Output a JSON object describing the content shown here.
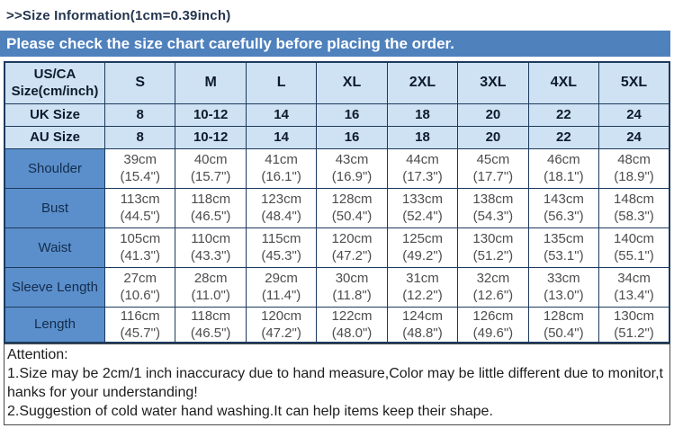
{
  "header": {
    "title": ">>Size Information(1cm=0.39inch)",
    "banner": "Please check the size chart carefully before placing the order."
  },
  "table": {
    "corner_header": [
      "US/CA",
      "Size(cm/inch)"
    ],
    "size_columns": [
      "S",
      "M",
      "L",
      "XL",
      "2XL",
      "3XL",
      "4XL",
      "5XL"
    ],
    "region_rows": [
      {
        "label": "UK Size",
        "values": [
          "8",
          "10-12",
          "14",
          "16",
          "18",
          "20",
          "22",
          "24"
        ]
      },
      {
        "label": "AU Size",
        "values": [
          "8",
          "10-12",
          "14",
          "16",
          "18",
          "20",
          "22",
          "24"
        ]
      }
    ],
    "measurement_rows": [
      {
        "label": "Shoulder",
        "cm": [
          "39cm",
          "40cm",
          "41cm",
          "43cm",
          "44cm",
          "45cm",
          "46cm",
          "48cm"
        ],
        "inch": [
          "(15.4\")",
          "(15.7\")",
          "(16.1\")",
          "(16.9\")",
          "(17.3\")",
          "(17.7\")",
          "(18.1\")",
          "(18.9\")"
        ]
      },
      {
        "label": "Bust",
        "cm": [
          "113cm",
          "118cm",
          "123cm",
          "128cm",
          "133cm",
          "138cm",
          "143cm",
          "148cm"
        ],
        "inch": [
          "(44.5\")",
          "(46.5\")",
          "(48.4\")",
          "(50.4\")",
          "(52.4\")",
          "(54.3\")",
          "(56.3\")",
          "(58.3\")"
        ]
      },
      {
        "label": "Waist",
        "cm": [
          "105cm",
          "110cm",
          "115cm",
          "120cm",
          "125cm",
          "130cm",
          "135cm",
          "140cm"
        ],
        "inch": [
          "(41.3\")",
          "(43.3\")",
          "(45.3\")",
          "(47.2\")",
          "(49.2\")",
          "(51.2\")",
          "(53.1\")",
          "(55.1\")"
        ]
      },
      {
        "label": "Sleeve Length",
        "cm": [
          "27cm",
          "28cm",
          "29cm",
          "30cm",
          "31cm",
          "32cm",
          "33cm",
          "34cm"
        ],
        "inch": [
          "(10.6\")",
          "(11.0\")",
          "(11.4\")",
          "(11.8\")",
          "(12.2\")",
          "(12.6\")",
          "(13.0\")",
          "(13.4\")"
        ]
      },
      {
        "label": "Length",
        "cm": [
          "116cm",
          "118cm",
          "120cm",
          "122cm",
          "124cm",
          "126cm",
          "128cm",
          "130cm"
        ],
        "inch": [
          "(45.7\")",
          "(46.5\")",
          "(47.2\")",
          "(48.0\")",
          "(48.8\")",
          "(49.6\")",
          "(50.4\")",
          "(51.2\")"
        ]
      }
    ]
  },
  "attention": {
    "heading": "Attention:",
    "note1": "1.Size may be 2cm/1 inch inaccuracy due to hand measure,Color may be little different due to monitor,thanks for your understanding!",
    "note2": "2.Suggestion of cold water hand washing.It can help items keep their shape."
  },
  "colors": {
    "banner_blue": "#4f81bd",
    "header_light_blue": "#cfe2f3",
    "label_medium_blue": "#5b8fcb",
    "border_navy": "#1c3a5e",
    "data_text_gray": "#4d4d4d"
  }
}
